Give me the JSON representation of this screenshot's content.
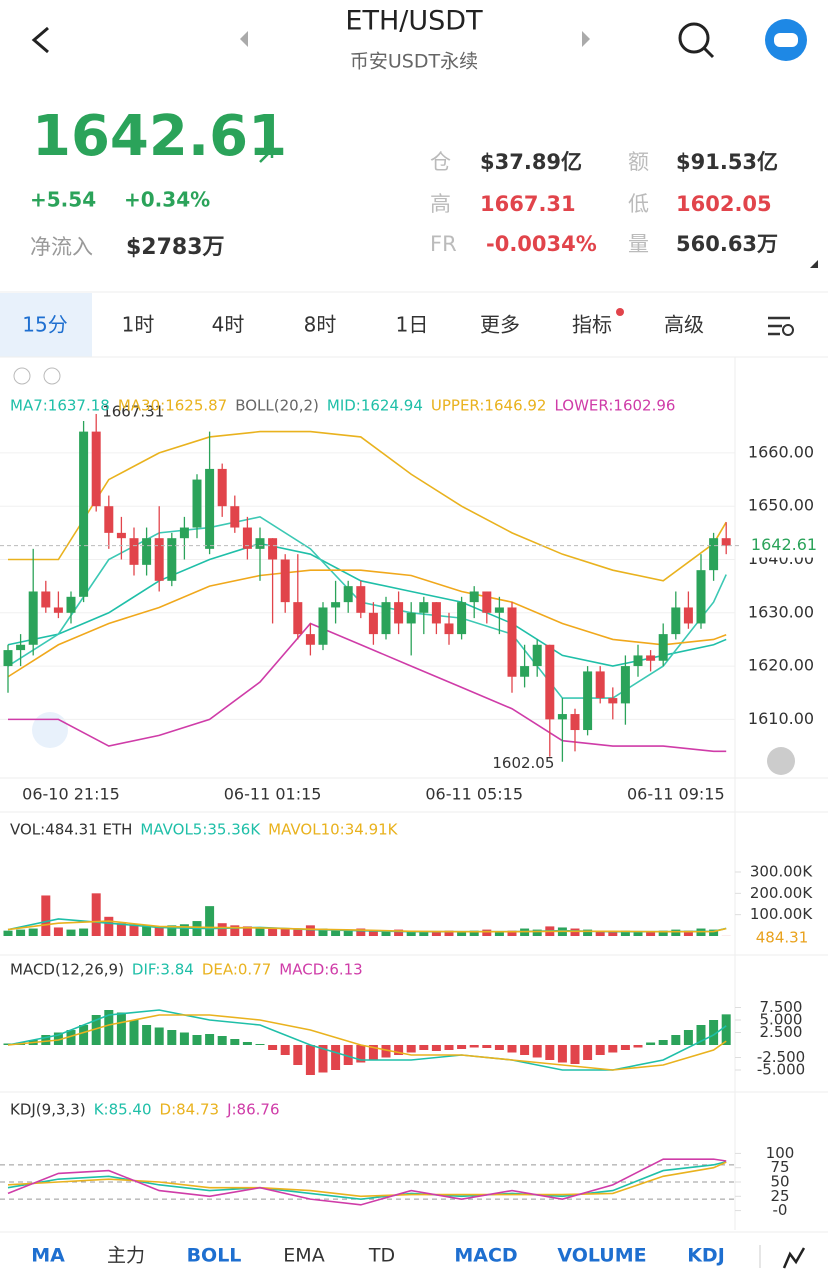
{
  "header": {
    "title": "ETH/USDT",
    "subtitle": "币安USDT永续"
  },
  "quote": {
    "price": "1642.61",
    "change": "+5.54",
    "change_pct": "+0.34%",
    "inflow_label": "净流入",
    "inflow": "$2783万",
    "stats": [
      {
        "label": "仓",
        "value": "$37.89亿"
      },
      {
        "label": "额",
        "value": "$91.53亿"
      },
      {
        "label": "高",
        "value": "1667.31"
      },
      {
        "label": "低",
        "value": "1602.05"
      },
      {
        "label": "FR",
        "value": "-0.0034%"
      },
      {
        "label": "量",
        "value": "560.63万"
      }
    ]
  },
  "tabs": [
    "15分",
    "1时",
    "4时",
    "8时",
    "1日",
    "更多",
    "指标",
    "高级"
  ],
  "bottom_tabs": [
    "MA",
    "主力",
    "BOLL",
    "EMA",
    "TD",
    "MACD",
    "VOLUME",
    "KDJ"
  ],
  "kline": {
    "type": "candlestick",
    "legend": [
      "MA7:1637.18",
      "MA30:1625.87",
      "BOLL(20,2)",
      "MID:1624.94",
      "UPPER:1646.92",
      "LOWER:1602.96"
    ],
    "categories": [
      null,
      null,
      null,
      null,
      null,
      "06-10 21:15",
      null,
      null,
      null,
      null,
      null,
      null,
      null,
      null,
      null,
      null,
      null,
      null,
      null,
      null,
      null,
      "06-11 01:15",
      null,
      null,
      null,
      null,
      null,
      null,
      null,
      null,
      null,
      null,
      null,
      null,
      null,
      null,
      null,
      "06-11 05:15",
      null,
      null,
      null,
      null,
      null,
      null,
      null,
      null,
      null,
      null,
      null,
      null,
      null,
      null,
      null,
      "06-11 09:15",
      null,
      null,
      null,
      null
    ],
    "open": [
      1620,
      1623,
      1624,
      1634,
      1631,
      1630,
      1633,
      1664,
      1650,
      1645,
      1644,
      1639,
      1644,
      1636,
      1644,
      1646,
      1642,
      1657,
      1650,
      1646,
      1642,
      1644,
      1640,
      1632,
      1626,
      1624,
      1631,
      1632,
      1635,
      1630,
      1626,
      1632,
      1628,
      1630,
      1632,
      1628,
      1626,
      1632,
      1634,
      1630,
      1631,
      1618,
      1620,
      1624,
      1610,
      1611,
      1608,
      1619,
      1614,
      1613,
      1620,
      1622,
      1621,
      1626,
      1631,
      1628,
      1638,
      1644
    ],
    "high": [
      1624,
      1626,
      1642,
      1636,
      1634,
      1634,
      1666,
      1667.31,
      1652,
      1648,
      1646,
      1646,
      1650,
      1645,
      1648,
      1656,
      1664,
      1658,
      1652,
      1648,
      1646,
      1644,
      1641,
      1641,
      1628,
      1632,
      1636,
      1636,
      1636,
      1632,
      1633,
      1634,
      1632,
      1633,
      1632,
      1630,
      1633,
      1635,
      1634,
      1633,
      1632,
      1624,
      1625,
      1624,
      1614,
      1612,
      1620,
      1620,
      1616,
      1622,
      1624,
      1623,
      1628,
      1634,
      1634,
      1641,
      1645,
      1647
    ],
    "low": [
      1615,
      1620,
      1622,
      1630,
      1629,
      1628,
      1632,
      1649,
      1642,
      1640,
      1637,
      1637,
      1634,
      1635,
      1640,
      1644,
      1641,
      1648,
      1645,
      1640,
      1636,
      1628,
      1630,
      1625,
      1622,
      1623,
      1628,
      1630,
      1629,
      1624,
      1625,
      1626,
      1622,
      1626,
      1626,
      1624,
      1625,
      1629,
      1628,
      1626,
      1615,
      1616,
      1618,
      1603,
      1602.05,
      1604,
      1607,
      1613,
      1610,
      1609,
      1618,
      1619,
      1620,
      1625,
      1627,
      1627,
      1636,
      1641
    ],
    "close": [
      1623,
      1624,
      1634,
      1631,
      1630,
      1633,
      1664,
      1650,
      1645,
      1644,
      1639,
      1644,
      1636,
      1644,
      1646,
      1655,
      1657,
      1650,
      1646,
      1642,
      1644,
      1640,
      1632,
      1626,
      1624,
      1631,
      1632,
      1635,
      1630,
      1626,
      1632,
      1628,
      1630,
      1632,
      1628,
      1626,
      1632,
      1634,
      1630,
      1631,
      1618,
      1620,
      1624,
      1610,
      1611,
      1608,
      1619,
      1614,
      1613,
      1620,
      1622,
      1621,
      1626,
      1631,
      1628,
      1638,
      1644,
      1642.61
    ],
    "up_color": "#2ba35a",
    "down_color": "#e1444b",
    "line_x": [
      0,
      4,
      8,
      12,
      16,
      20,
      24,
      28,
      32,
      36,
      40,
      44,
      48,
      52,
      56,
      57
    ],
    "lines": [
      {
        "name": "UPPER",
        "color": "#e9b21e",
        "values": [
          1640,
          1640,
          1655,
          1660,
          1663,
          1664,
          1664,
          1663,
          1656,
          1650,
          1645,
          1641,
          1638,
          1636,
          1643,
          1647
        ]
      },
      {
        "name": "MID",
        "color": "#1fbfa8",
        "values": [
          1624,
          1626,
          1630,
          1636,
          1640,
          1643,
          1641,
          1636,
          1634,
          1632,
          1628,
          1622,
          1620,
          1622,
          1624,
          1625
        ]
      },
      {
        "name": "LOWER",
        "color": "#cf3ca8",
        "values": [
          1610,
          1610,
          1605,
          1607,
          1610,
          1617,
          1628,
          1624,
          1620,
          1616,
          1612,
          1606,
          1605,
          1605,
          1604,
          1604
        ]
      },
      {
        "name": "MA7",
        "color": "#3cc8b4",
        "values": [
          1620,
          1626,
          1640,
          1645,
          1646,
          1648,
          1642,
          1632,
          1630,
          1629,
          1626,
          1614,
          1614,
          1620,
          1632,
          1637.18
        ]
      },
      {
        "name": "MA30",
        "color": "#f0a81c",
        "values": [
          1618,
          1624,
          1628,
          1631,
          1635,
          1637,
          1638,
          1638,
          1637,
          1634,
          1632,
          1628,
          1625,
          1624,
          1625,
          1625.87
        ]
      }
    ],
    "ylim": [
      1599,
      1678
    ],
    "yticks": [
      {
        "value": 1610,
        "label": "1610.00"
      },
      {
        "value": 1620,
        "label": "1620.00"
      },
      {
        "value": 1630,
        "label": "1630.00"
      },
      {
        "value": 1640,
        "label": "1640.00"
      },
      {
        "value": 1650,
        "label": "1650.00"
      },
      {
        "value": 1660,
        "label": "1660.00"
      }
    ],
    "last_label": "1642.61",
    "high_label": "1667.31",
    "low_label": "1602.05"
  },
  "volume": {
    "type": "bar",
    "legend": [
      "VOL:484.31 ETH",
      "MAVOL5:35.36K",
      "MAVOL10:34.91K"
    ],
    "current_label": "484.31",
    "values": [
      25,
      30,
      35,
      190,
      40,
      30,
      35,
      200,
      90,
      60,
      55,
      50,
      45,
      50,
      55,
      70,
      140,
      60,
      50,
      45,
      40,
      40,
      35,
      30,
      50,
      35,
      30,
      30,
      35,
      25,
      25,
      30,
      25,
      20,
      20,
      25,
      20,
      25,
      30,
      20,
      25,
      35,
      30,
      45,
      40,
      35,
      30,
      25,
      20,
      25,
      20,
      20,
      25,
      30,
      25,
      35,
      30,
      0.48
    ],
    "lines": [
      {
        "name": "MAVOL5",
        "color": "#1fbfa8",
        "values": [
          30,
          80,
          60,
          40,
          35,
          40,
          30,
          25,
          20,
          20,
          20,
          25,
          20,
          20,
          22,
          35.36
        ]
      },
      {
        "name": "MAVOL10",
        "color": "#e9b21e",
        "values": [
          30,
          60,
          70,
          45,
          40,
          38,
          32,
          28,
          22,
          20,
          20,
          22,
          22,
          20,
          21,
          34.91
        ]
      }
    ],
    "ylim": [
      0,
      600
    ],
    "yticks": [
      {
        "value": 100,
        "label": "100.00K"
      },
      {
        "value": 200,
        "label": "200.00K"
      },
      {
        "value": 300,
        "label": "300.00K"
      }
    ]
  },
  "macd": {
    "type": "bar",
    "legend": [
      "MACD(12,26,9)",
      "DIF:3.84",
      "DEA:0.77",
      "MACD:6.13"
    ],
    "values": [
      0.3,
      0.5,
      1,
      2,
      2.5,
      3,
      4,
      6,
      7,
      6.5,
      5,
      4,
      3.5,
      3,
      2.5,
      2,
      2.2,
      1.8,
      1.2,
      0.6,
      0.2,
      -1,
      -2,
      -4,
      -6,
      -5.5,
      -5,
      -4,
      -3.5,
      -3,
      -2.5,
      -2,
      -1.5,
      -1,
      -1.2,
      -1,
      -0.8,
      -0.5,
      -0.6,
      -1,
      -1.5,
      -2,
      -2.5,
      -3,
      -3.5,
      -3.8,
      -3,
      -2,
      -1.5,
      -1,
      -0.5,
      0.5,
      1,
      2,
      3,
      4,
      5,
      6.13
    ],
    "lines": [
      {
        "name": "DIF",
        "color": "#1fbfa8",
        "values": [
          0,
          2,
          6,
          7,
          5,
          4,
          0,
          -3,
          -3,
          -2,
          -3,
          -5,
          -5,
          -3,
          2,
          3.84
        ]
      },
      {
        "name": "DEA",
        "color": "#e9b21e",
        "values": [
          0,
          1,
          4,
          6,
          6,
          5,
          3,
          0,
          -2,
          -2,
          -3,
          -4,
          -5,
          -4,
          -1,
          0.77
        ]
      }
    ],
    "ylim": [
      -8,
      12
    ],
    "yticks": [
      {
        "value": -5,
        "label": "-5.000"
      },
      {
        "value": -2.5,
        "label": "-2.500"
      },
      {
        "value": 2.5,
        "label": "2.500"
      },
      {
        "value": 5,
        "label": "5.000"
      },
      {
        "value": 7.5,
        "label": "7.500"
      }
    ]
  },
  "kdj": {
    "type": "line",
    "legend": [
      "KDJ(9,3,3)",
      "K:85.40",
      "D:84.73",
      "J:86.76"
    ],
    "lines": [
      {
        "name": "K",
        "color": "#1fbfa8",
        "values": [
          40,
          55,
          60,
          45,
          35,
          40,
          30,
          20,
          30,
          25,
          30,
          25,
          35,
          70,
          80,
          85.4
        ]
      },
      {
        "name": "D",
        "color": "#e9b21e",
        "values": [
          45,
          50,
          55,
          50,
          40,
          40,
          35,
          25,
          28,
          28,
          28,
          28,
          30,
          60,
          75,
          84.73
        ]
      },
      {
        "name": "J",
        "color": "#cf3ca8",
        "values": [
          30,
          65,
          70,
          35,
          25,
          40,
          20,
          10,
          35,
          20,
          35,
          20,
          45,
          90,
          90,
          86.76
        ]
      }
    ],
    "levels": [
      20,
      50,
      80
    ],
    "ylim": [
      -20,
      120
    ],
    "yticks": [
      {
        "value": 0,
        "label": "-0"
      },
      25,
      50,
      75,
      100
    ]
  }
}
